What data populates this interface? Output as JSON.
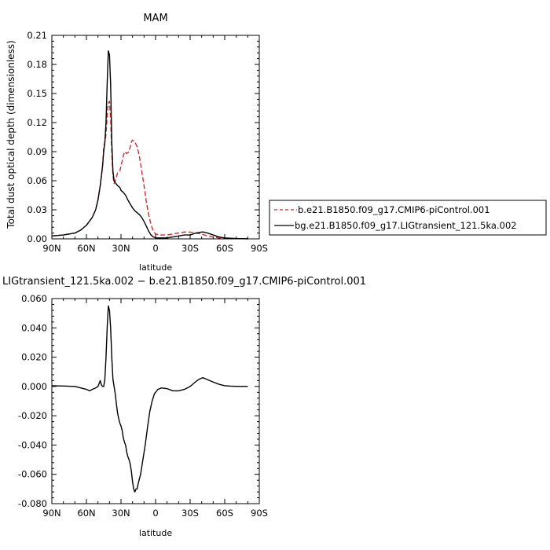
{
  "chart_data": [
    {
      "type": "line",
      "title": "MAM",
      "xlabel": "latitude",
      "ylabel": "Total dust optical depth (dimensionless)",
      "xlim": [
        90,
        -90
      ],
      "ylim": [
        0,
        0.21
      ],
      "xticks": [
        90,
        60,
        30,
        0,
        -30,
        -60,
        -90
      ],
      "xtick_labels": [
        "90N",
        "60N",
        "30N",
        "0",
        "30S",
        "60S",
        "90S"
      ],
      "yticks": [
        0,
        0.03,
        0.06,
        0.09,
        0.12,
        0.15,
        0.18,
        0.21
      ],
      "ytick_labels": [
        "0.00",
        "0.03",
        "0.06",
        "0.09",
        "0.12",
        "0.15",
        "0.18",
        "0.21"
      ],
      "legend_position": "right",
      "series": [
        {
          "name": "b.e21.B1850.f09_g17.CMIP6-piControl.001",
          "color": "#d62728",
          "dash": "dashed",
          "points": [
            [
              90,
              0.003
            ],
            [
              80,
              0.004
            ],
            [
              70,
              0.006
            ],
            [
              65,
              0.009
            ],
            [
              60,
              0.014
            ],
            [
              55,
              0.022
            ],
            [
              52,
              0.03
            ],
            [
              50,
              0.04
            ],
            [
              48,
              0.055
            ],
            [
              46,
              0.075
            ],
            [
              45,
              0.095
            ],
            [
              44,
              0.1
            ],
            [
              43,
              0.108
            ],
            [
              42,
              0.128
            ],
            [
              41,
              0.14
            ],
            [
              40,
              0.142
            ],
            [
              39,
              0.125
            ],
            [
              38,
              0.09
            ],
            [
              37,
              0.065
            ],
            [
              36,
              0.057
            ],
            [
              35,
              0.06
            ],
            [
              33,
              0.068
            ],
            [
              31,
              0.07
            ],
            [
              30,
              0.075
            ],
            [
              28,
              0.085
            ],
            [
              27,
              0.09
            ],
            [
              25,
              0.088
            ],
            [
              23,
              0.09
            ],
            [
              21,
              0.1
            ],
            [
              20,
              0.102
            ],
            [
              18,
              0.1
            ],
            [
              16,
              0.095
            ],
            [
              14,
              0.085
            ],
            [
              12,
              0.07
            ],
            [
              10,
              0.055
            ],
            [
              8,
              0.038
            ],
            [
              6,
              0.025
            ],
            [
              4,
              0.015
            ],
            [
              2,
              0.008
            ],
            [
              0,
              0.005
            ],
            [
              -5,
              0.004
            ],
            [
              -10,
              0.004
            ],
            [
              -15,
              0.005
            ],
            [
              -20,
              0.006
            ],
            [
              -25,
              0.007
            ],
            [
              -30,
              0.007
            ],
            [
              -35,
              0.006
            ],
            [
              -40,
              0.005
            ],
            [
              -45,
              0.003
            ],
            [
              -50,
              0.002
            ],
            [
              -55,
              0.001
            ],
            [
              -60,
              0.0005
            ],
            [
              -70,
              0.0002
            ],
            [
              -80,
              0.0001
            ]
          ]
        },
        {
          "name": "bg.e21.B1850.f09_g17.LIGtransient_121.5ka.002",
          "color": "#000000",
          "dash": "solid",
          "points": [
            [
              90,
              0.003
            ],
            [
              80,
              0.004
            ],
            [
              70,
              0.006
            ],
            [
              65,
              0.009
            ],
            [
              60,
              0.014
            ],
            [
              55,
              0.022
            ],
            [
              52,
              0.03
            ],
            [
              50,
              0.04
            ],
            [
              48,
              0.055
            ],
            [
              46,
              0.075
            ],
            [
              45,
              0.09
            ],
            [
              44,
              0.1
            ],
            [
              43,
              0.12
            ],
            [
              42,
              0.16
            ],
            [
              41,
              0.194
            ],
            [
              40,
              0.19
            ],
            [
              39,
              0.16
            ],
            [
              38,
              0.1
            ],
            [
              37,
              0.07
            ],
            [
              36,
              0.06
            ],
            [
              35,
              0.058
            ],
            [
              33,
              0.055
            ],
            [
              31,
              0.053
            ],
            [
              30,
              0.05
            ],
            [
              28,
              0.048
            ],
            [
              26,
              0.045
            ],
            [
              24,
              0.04
            ],
            [
              22,
              0.036
            ],
            [
              20,
              0.032
            ],
            [
              18,
              0.029
            ],
            [
              16,
              0.027
            ],
            [
              14,
              0.025
            ],
            [
              12,
              0.022
            ],
            [
              10,
              0.018
            ],
            [
              8,
              0.013
            ],
            [
              6,
              0.008
            ],
            [
              4,
              0.004
            ],
            [
              2,
              0.002
            ],
            [
              0,
              0.001
            ],
            [
              -5,
              0.001
            ],
            [
              -10,
              0.001
            ],
            [
              -15,
              0.002
            ],
            [
              -20,
              0.003
            ],
            [
              -25,
              0.004
            ],
            [
              -30,
              0.004
            ],
            [
              -35,
              0.006
            ],
            [
              -40,
              0.007
            ],
            [
              -42,
              0.007
            ],
            [
              -45,
              0.006
            ],
            [
              -50,
              0.004
            ],
            [
              -55,
              0.002
            ],
            [
              -60,
              0.001
            ],
            [
              -70,
              0.0003
            ],
            [
              -80,
              0.0001
            ]
          ]
        }
      ]
    },
    {
      "type": "line",
      "title": "LIGtransient_121.5ka.002 − b.e21.B1850.f09_g17.CMIP6-piControl.001",
      "xlabel": "latitude",
      "xlim": [
        90,
        -90
      ],
      "ylim": [
        -0.08,
        0.06
      ],
      "xticks": [
        90,
        60,
        30,
        0,
        -30,
        -60,
        -90
      ],
      "xtick_labels": [
        "90N",
        "60N",
        "30N",
        "0",
        "30S",
        "60S",
        "90S"
      ],
      "yticks": [
        -0.08,
        -0.06,
        -0.04,
        -0.02,
        0,
        0.02,
        0.04,
        0.06
      ],
      "ytick_labels": [
        "-0.080",
        "-0.060",
        "-0.040",
        "-0.020",
        "0.000",
        "0.020",
        "0.040",
        "0.060"
      ],
      "series": [
        {
          "color": "#000000",
          "dash": "solid",
          "points": [
            [
              90,
              0.0005
            ],
            [
              80,
              0.0003
            ],
            [
              70,
              0
            ],
            [
              65,
              -0.001
            ],
            [
              60,
              -0.002
            ],
            [
              57,
              -0.003
            ],
            [
              55,
              -0.002
            ],
            [
              52,
              -0.001
            ],
            [
              50,
              0
            ],
            [
              49,
              0.002
            ],
            [
              48,
              0.004
            ],
            [
              47,
              0.001
            ],
            [
              46,
              0.0
            ],
            [
              45,
              0.0
            ],
            [
              44,
              0.005
            ],
            [
              43,
              0.02
            ],
            [
              42,
              0.04
            ],
            [
              41,
              0.055
            ],
            [
              40,
              0.052
            ],
            [
              39,
              0.04
            ],
            [
              38,
              0.02
            ],
            [
              37,
              0.005
            ],
            [
              36,
              0.0
            ],
            [
              35,
              -0.005
            ],
            [
              34,
              -0.012
            ],
            [
              33,
              -0.018
            ],
            [
              32,
              -0.022
            ],
            [
              31,
              -0.025
            ],
            [
              30,
              -0.027
            ],
            [
              29,
              -0.03
            ],
            [
              28,
              -0.035
            ],
            [
              27,
              -0.038
            ],
            [
              26,
              -0.04
            ],
            [
              25,
              -0.045
            ],
            [
              24,
              -0.048
            ],
            [
              23,
              -0.05
            ],
            [
              22,
              -0.053
            ],
            [
              21,
              -0.058
            ],
            [
              20,
              -0.065
            ],
            [
              19,
              -0.07
            ],
            [
              18,
              -0.072
            ],
            [
              17,
              -0.07
            ],
            [
              16,
              -0.07
            ],
            [
              15,
              -0.066
            ],
            [
              13,
              -0.06
            ],
            [
              11,
              -0.05
            ],
            [
              9,
              -0.04
            ],
            [
              7,
              -0.028
            ],
            [
              5,
              -0.017
            ],
            [
              3,
              -0.01
            ],
            [
              1,
              -0.005
            ],
            [
              -2,
              -0.002
            ],
            [
              -5,
              -0.001
            ],
            [
              -10,
              -0.0015
            ],
            [
              -15,
              -0.003
            ],
            [
              -20,
              -0.003
            ],
            [
              -25,
              -0.002
            ],
            [
              -30,
              0.0
            ],
            [
              -33,
              0.002
            ],
            [
              -36,
              0.004
            ],
            [
              -38,
              0.005
            ],
            [
              -41,
              0.006
            ],
            [
              -44,
              0.005
            ],
            [
              -47,
              0.004
            ],
            [
              -50,
              0.003
            ],
            [
              -55,
              0.0015
            ],
            [
              -60,
              0.0005
            ],
            [
              -65,
              0.0002
            ],
            [
              -70,
              0.0001
            ],
            [
              -80,
              0
            ]
          ]
        }
      ]
    }
  ]
}
